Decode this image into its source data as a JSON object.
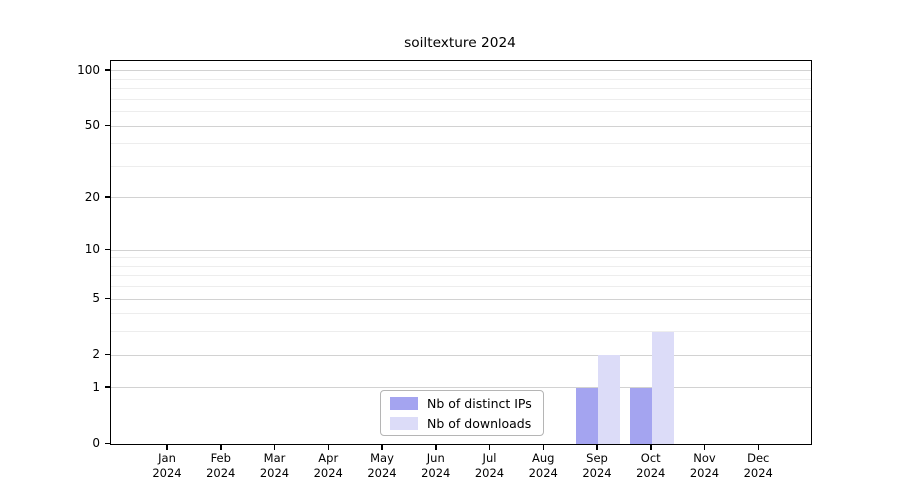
{
  "chart_data": {
    "type": "bar",
    "title": "soiltexture 2024",
    "x_year_label": "2024",
    "months": [
      "Jan",
      "Feb",
      "Mar",
      "Apr",
      "May",
      "Jun",
      "Jul",
      "Aug",
      "Sep",
      "Oct",
      "Nov",
      "Dec"
    ],
    "series": [
      {
        "name": "Nb of distinct IPs",
        "color": "#a4a4f0",
        "values": [
          0,
          0,
          0,
          0,
          0,
          0,
          0,
          0,
          1,
          1,
          0,
          0
        ]
      },
      {
        "name": "Nb of downloads",
        "color": "#dcdcf8",
        "values": [
          0,
          0,
          0,
          0,
          0,
          0,
          0,
          0,
          2,
          3,
          0,
          0
        ]
      }
    ],
    "xlabel": "",
    "ylabel": "",
    "yscale": "log10(1+y)",
    "ylim": [
      0,
      113
    ],
    "y_ticks": [
      0,
      1,
      2,
      5,
      10,
      20,
      50,
      100
    ],
    "y_grid_major": [
      1,
      2,
      5,
      10,
      20,
      50,
      100
    ],
    "y_grid_minor": [
      3,
      4,
      6,
      7,
      8,
      9,
      30,
      40,
      60,
      70,
      80,
      90
    ],
    "grid": "horizontal, on",
    "legend_position": "inside bottom-center",
    "colors": {
      "axis": "#000000",
      "grid_major": "#d2d2d2",
      "grid_minor": "#ededed",
      "legend_border": "#b5b5b5",
      "background": "#ffffff"
    }
  }
}
